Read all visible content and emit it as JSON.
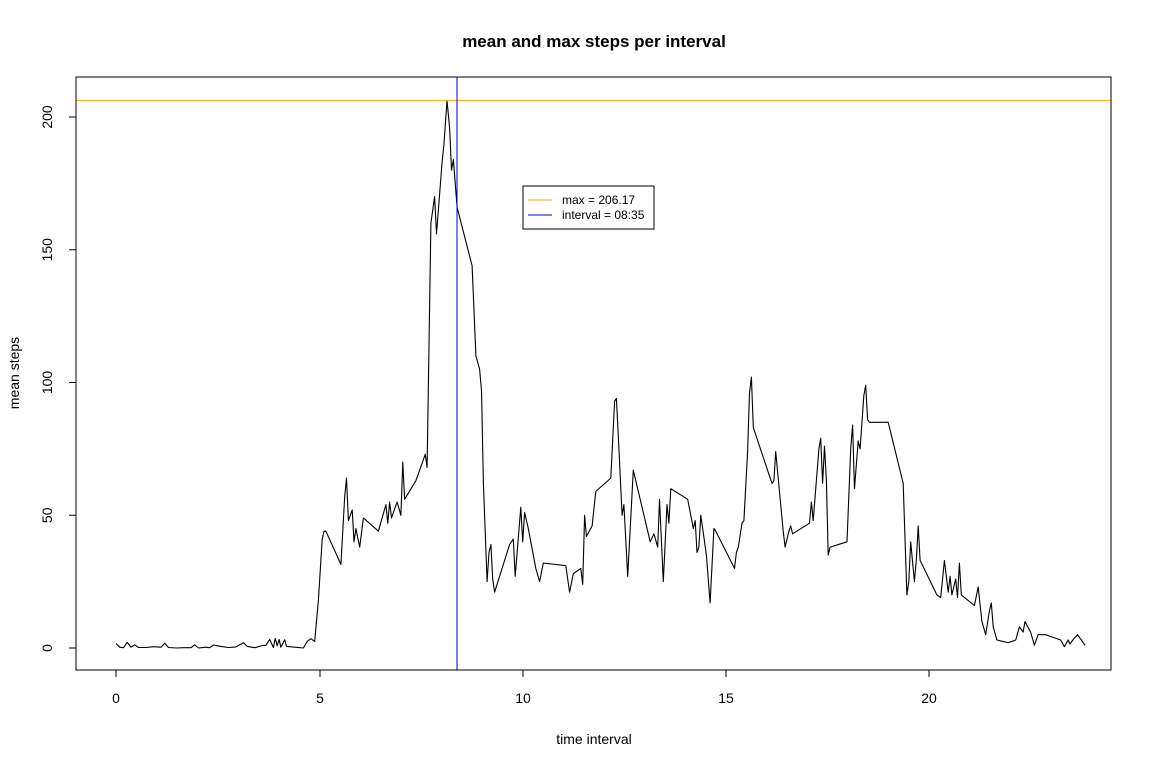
{
  "chart_data": {
    "type": "line",
    "title": "mean and max steps per interval",
    "xlabel": "time interval",
    "ylabel": "mean steps",
    "xlim": [
      -1,
      24.5
    ],
    "ylim": [
      -8,
      214
    ],
    "x_ticks": [
      0,
      5,
      10,
      15,
      20
    ],
    "y_ticks": [
      0,
      50,
      100,
      150,
      200
    ],
    "series": [
      {
        "color": "#000000",
        "points": [
          [
            0,
            1.7
          ],
          [
            0.1,
            0.3
          ],
          [
            0.2,
            0.1
          ],
          [
            0.3,
            2.1
          ],
          [
            0.4,
            0.3
          ],
          [
            0.5,
            1.2
          ],
          [
            0.6,
            0.2
          ],
          [
            0.8,
            0.2
          ],
          [
            1,
            0.5
          ],
          [
            1.2,
            0.3
          ],
          [
            1.3,
            1.8
          ],
          [
            1.4,
            0.2
          ],
          [
            1.6,
            0
          ],
          [
            1.8,
            0.1
          ],
          [
            2.0,
            0.1
          ],
          [
            2.1,
            1.2
          ],
          [
            2.2,
            0
          ],
          [
            2.4,
            0.3
          ],
          [
            2.5,
            0.1
          ],
          [
            2.6,
            1.1
          ],
          [
            2.8,
            0.6
          ],
          [
            3.0,
            0.2
          ],
          [
            3.2,
            0.4
          ],
          [
            3.4,
            2.0
          ],
          [
            3.5,
            0.6
          ],
          [
            3.7,
            0.1
          ],
          [
            3.9,
            0.9
          ],
          [
            4.0,
            1.0
          ],
          [
            4.1,
            3.2
          ],
          [
            4.2,
            0.2
          ],
          [
            4.25,
            3.6
          ],
          [
            4.3,
            0.8
          ],
          [
            4.35,
            3.2
          ],
          [
            4.4,
            0.3
          ],
          [
            4.5,
            3.1
          ],
          [
            4.55,
            0.6
          ],
          [
            4.7,
            0.4
          ],
          [
            5.0,
            0
          ],
          [
            5.1,
            2.5
          ],
          [
            5.2,
            3.5
          ],
          [
            5.3,
            2.5
          ],
          [
            5.4,
            18.0
          ],
          [
            5.5,
            41.0
          ],
          [
            5.55,
            44.0
          ],
          [
            5.6,
            44.0
          ],
          [
            6.0,
            31.5
          ],
          [
            6.1,
            57.0
          ],
          [
            6.15,
            64.0
          ],
          [
            6.2,
            48.0
          ],
          [
            6.3,
            52.0
          ],
          [
            6.35,
            40.0
          ],
          [
            6.4,
            45.0
          ],
          [
            6.5,
            38.0
          ],
          [
            6.6,
            49.0
          ],
          [
            7.0,
            44.0
          ],
          [
            7.2,
            54.0
          ],
          [
            7.25,
            47.0
          ],
          [
            7.3,
            55.0
          ],
          [
            7.35,
            49.0
          ],
          [
            7.5,
            55.0
          ],
          [
            7.6,
            50.0
          ],
          [
            7.65,
            70.0
          ],
          [
            7.7,
            56.0
          ],
          [
            8.0,
            63.0
          ],
          [
            8.25,
            73.0
          ],
          [
            8.3,
            68.0
          ],
          [
            8.4,
            160.0
          ],
          [
            8.5,
            170.0
          ],
          [
            8.55,
            156.0
          ],
          [
            8.6,
            165.0
          ],
          [
            8.7,
            183.0
          ],
          [
            8.75,
            190.0
          ],
          [
            8.83,
            206.17
          ],
          [
            8.9,
            196.0
          ],
          [
            8.95,
            180.0
          ],
          [
            9.0,
            184.0
          ],
          [
            9.1,
            166.0
          ],
          [
            9.5,
            144.0
          ],
          [
            9.6,
            110.0
          ],
          [
            9.7,
            105.0
          ],
          [
            9.75,
            97.0
          ],
          [
            9.8,
            62.0
          ],
          [
            9.9,
            25.0
          ],
          [
            9.95,
            36.0
          ],
          [
            10.0,
            39.0
          ],
          [
            10.05,
            26.0
          ],
          [
            10.1,
            21.0
          ],
          [
            10.5,
            39.0
          ],
          [
            10.6,
            41.0
          ],
          [
            10.65,
            27.0
          ],
          [
            10.8,
            53.0
          ],
          [
            10.85,
            40.0
          ],
          [
            10.9,
            51.0
          ],
          [
            11.0,
            45.0
          ],
          [
            11.2,
            30.0
          ],
          [
            11.3,
            25.0
          ],
          [
            11.4,
            32.0
          ],
          [
            12.0,
            31.0
          ],
          [
            12.1,
            21.0
          ],
          [
            12.2,
            28.0
          ],
          [
            12.3,
            29.0
          ],
          [
            12.4,
            30.0
          ],
          [
            12.45,
            24.0
          ],
          [
            12.5,
            50.0
          ],
          [
            12.55,
            42.0
          ],
          [
            12.7,
            46.0
          ],
          [
            12.8,
            59.0
          ],
          [
            13.2,
            64.0
          ],
          [
            13.3,
            93.0
          ],
          [
            13.35,
            94.0
          ],
          [
            13.4,
            80.0
          ],
          [
            13.5,
            50.0
          ],
          [
            13.55,
            54.0
          ],
          [
            13.65,
            27.0
          ],
          [
            13.8,
            67.0
          ],
          [
            14.25,
            40.0
          ],
          [
            14.35,
            43.0
          ],
          [
            14.45,
            38.0
          ],
          [
            14.5,
            56.0
          ],
          [
            14.6,
            25.0
          ],
          [
            14.7,
            54.0
          ],
          [
            14.75,
            47.0
          ],
          [
            14.8,
            60.0
          ],
          [
            15.25,
            56.0
          ],
          [
            15.4,
            45.0
          ],
          [
            15.45,
            48.0
          ],
          [
            15.5,
            36.0
          ],
          [
            15.55,
            38.0
          ],
          [
            15.6,
            50.0
          ],
          [
            15.75,
            35.0
          ],
          [
            15.85,
            17.0
          ],
          [
            15.95,
            45.0
          ],
          [
            16.0,
            44.0
          ],
          [
            16.5,
            30.0
          ],
          [
            16.55,
            36.0
          ],
          [
            16.6,
            38.0
          ],
          [
            16.7,
            47.0
          ],
          [
            16.75,
            48.0
          ],
          [
            16.85,
            74.0
          ],
          [
            16.9,
            96.0
          ],
          [
            16.95,
            102.0
          ],
          [
            17.0,
            83.0
          ],
          [
            17.5,
            62.0
          ],
          [
            17.55,
            63.0
          ],
          [
            17.6,
            74.0
          ],
          [
            17.8,
            44.0
          ],
          [
            17.85,
            38.0
          ],
          [
            17.95,
            44.0
          ],
          [
            18.0,
            46.0
          ],
          [
            18.05,
            43.0
          ],
          [
            18.5,
            47.0
          ],
          [
            18.55,
            55.0
          ],
          [
            18.6,
            48.0
          ],
          [
            18.75,
            75.0
          ],
          [
            18.8,
            79.0
          ],
          [
            18.85,
            62.0
          ],
          [
            18.9,
            76.0
          ],
          [
            18.95,
            63.0
          ],
          [
            19.0,
            35.0
          ],
          [
            19.05,
            38.0
          ],
          [
            19.5,
            40.0
          ],
          [
            19.6,
            75.0
          ],
          [
            19.65,
            84.0
          ],
          [
            19.7,
            60.0
          ],
          [
            19.8,
            78.0
          ],
          [
            19.85,
            75.0
          ],
          [
            19.95,
            95.0
          ],
          [
            20.0,
            99.0
          ],
          [
            20.05,
            86.0
          ],
          [
            20.1,
            85.0
          ],
          [
            20.6,
            85.0
          ],
          [
            21.0,
            62.0
          ],
          [
            21.05,
            40.0
          ],
          [
            21.1,
            20.0
          ],
          [
            21.15,
            25.0
          ],
          [
            21.2,
            40.0
          ],
          [
            21.3,
            25.0
          ],
          [
            21.35,
            33.0
          ],
          [
            21.4,
            46.0
          ],
          [
            21.45,
            33.0
          ],
          [
            21.9,
            20.0
          ],
          [
            22.0,
            19.0
          ],
          [
            22.1,
            33.0
          ],
          [
            22.2,
            21.0
          ],
          [
            22.25,
            27.0
          ],
          [
            22.3,
            20.0
          ],
          [
            22.4,
            26.0
          ],
          [
            22.45,
            19.0
          ],
          [
            22.5,
            32.0
          ],
          [
            22.55,
            20.0
          ],
          [
            22.9,
            16.0
          ],
          [
            23.0,
            23.0
          ],
          [
            23.1,
            10.0
          ],
          [
            23.2,
            5.0
          ],
          [
            23.3,
            14.0
          ],
          [
            23.35,
            17.0
          ],
          [
            23.4,
            8.0
          ],
          [
            23.5,
            3.0
          ],
          [
            23.8,
            2.0
          ],
          [
            24.0,
            3.0
          ],
          [
            24.1,
            8.0
          ],
          [
            24.2,
            6.0
          ],
          [
            24.25,
            10.0
          ],
          [
            24.4,
            6.0
          ],
          [
            24.5,
            1.0
          ],
          [
            24.6,
            5.0
          ],
          [
            24.8,
            5.0
          ],
          [
            25.0,
            4.0
          ],
          [
            25.2,
            3.0
          ],
          [
            25.3,
            0.5
          ],
          [
            25.4,
            3.0
          ],
          [
            25.45,
            1.5
          ],
          [
            25.55,
            3.5
          ],
          [
            25.65,
            5.0
          ],
          [
            25.75,
            3.0
          ],
          [
            25.85,
            1.0
          ]
        ]
      }
    ],
    "hline": {
      "y": 206.17,
      "color": "#FFA500"
    },
    "vline": {
      "x": 8.35,
      "color": "#0000CD"
    },
    "legend": {
      "placement": "upper-center",
      "entries": [
        {
          "label": "max = 206.17",
          "color": "#FFA500"
        },
        {
          "label": "interval = 08:35",
          "color": "#0000CD"
        }
      ]
    }
  }
}
